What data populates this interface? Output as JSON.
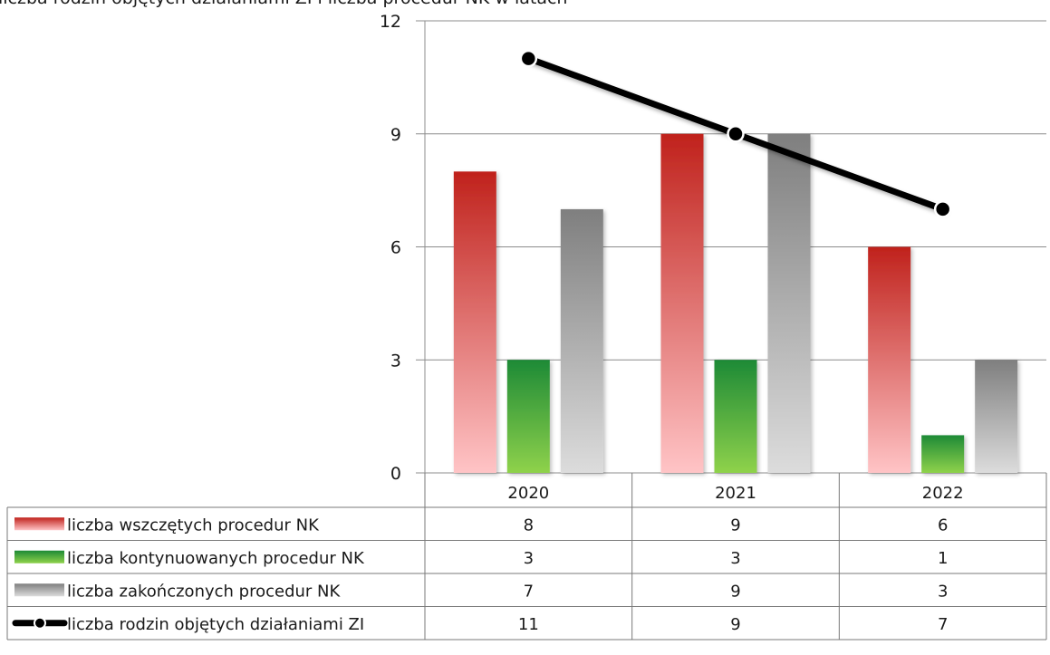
{
  "header": {
    "clipped_title": "liczba rodzin objętych działaniami ZI i liczba procedur NK w latach"
  },
  "chart_data": {
    "type": "bar",
    "categories": [
      "2020",
      "2021",
      "2022"
    ],
    "ylim": [
      0,
      12
    ],
    "yticks": [
      0,
      3,
      6,
      9,
      12
    ],
    "grid": true,
    "legend_placement": "data-table-left",
    "series": [
      {
        "name": "liczba wszczętych procedur NK",
        "type": "bar",
        "values": [
          8,
          9,
          6
        ],
        "color_top": "#c0221c",
        "color_bottom": "#ffc4c6"
      },
      {
        "name": "liczba kontynuowanych procedur NK",
        "type": "bar",
        "values": [
          3,
          3,
          1
        ],
        "color_top": "#1d8a36",
        "color_bottom": "#8fd24b"
      },
      {
        "name": "liczba zakończonych procedur NK",
        "type": "bar",
        "values": [
          7,
          9,
          3
        ],
        "color_top": "#7f7f7f",
        "color_bottom": "#dcdcdc"
      },
      {
        "name": "liczba rodzin objętych działaniami ZI",
        "type": "line",
        "values": [
          11,
          9,
          7
        ],
        "color": "#000000"
      }
    ]
  }
}
